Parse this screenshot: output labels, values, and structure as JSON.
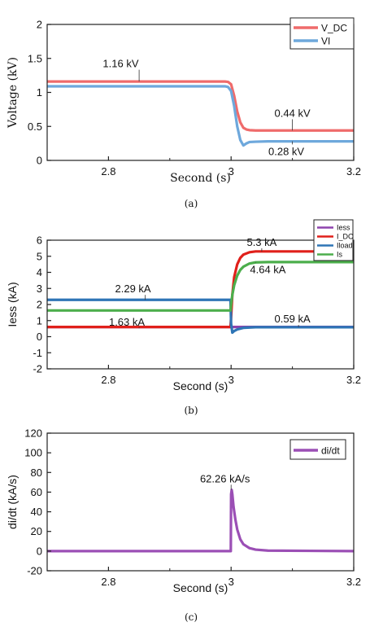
{
  "chart_data": [
    {
      "id": "a",
      "type": "line",
      "caption": "(a)",
      "xlabel": "Second (s)",
      "ylabel": "Voltage (kV)",
      "xlim": [
        2.7,
        3.2
      ],
      "ylim": [
        0,
        2
      ],
      "xticks": [
        2.8,
        3,
        3.2
      ],
      "xtick_labels": [
        "2.8",
        "3",
        "3.2"
      ],
      "yticks": [
        0,
        0.5,
        1,
        1.5,
        2
      ],
      "ytick_labels": [
        "0",
        "0.5",
        "1",
        "1.5",
        "2"
      ],
      "legend_position": "top-right",
      "series": [
        {
          "name": "V_DC",
          "color": "#ef6b6b",
          "x": [
            2.7,
            2.99,
            2.995,
            3.0,
            3.005,
            3.01,
            3.015,
            3.02,
            3.025,
            3.03,
            3.04,
            3.06,
            3.1,
            3.2
          ],
          "y": [
            1.16,
            1.16,
            1.155,
            1.12,
            0.95,
            0.72,
            0.56,
            0.48,
            0.455,
            0.445,
            0.44,
            0.44,
            0.44,
            0.44
          ]
        },
        {
          "name": "VI",
          "color": "#6ea8dc",
          "x": [
            2.7,
            2.99,
            2.995,
            3.0,
            3.005,
            3.01,
            3.015,
            3.02,
            3.025,
            3.03,
            3.04,
            3.06,
            3.1,
            3.2
          ],
          "y": [
            1.09,
            1.09,
            1.08,
            1.02,
            0.8,
            0.5,
            0.3,
            0.22,
            0.25,
            0.27,
            0.275,
            0.28,
            0.28,
            0.28
          ]
        }
      ],
      "annotations": [
        {
          "text": "1.16 kV",
          "x": 2.85,
          "y": 1.16,
          "label_x": 2.82,
          "label_y": 1.37
        },
        {
          "text": "0.44 kV",
          "x": 3.1,
          "y": 0.44,
          "label_x": 3.1,
          "label_y": 0.64
        },
        {
          "text": "0.28 kV",
          "x": 3.1,
          "y": 0.28,
          "label_x": 3.09,
          "label_y": 0.08
        }
      ]
    },
    {
      "id": "b",
      "type": "line",
      "caption": "(b)",
      "xlabel": "Second (s)",
      "ylabel": "Iess (kA)",
      "xlim": [
        2.7,
        3.2
      ],
      "ylim": [
        -2,
        6
      ],
      "xticks": [
        2.8,
        3,
        3.2
      ],
      "xtick_labels": [
        "2.8",
        "3",
        "3.2"
      ],
      "yticks": [
        -2,
        -1,
        0,
        1,
        2,
        3,
        4,
        5,
        6
      ],
      "ytick_labels": [
        "-2",
        "-1",
        "0",
        "1",
        "2",
        "3",
        "4",
        "5",
        "6"
      ],
      "legend_position": "top-right",
      "series": [
        {
          "name": "Iess",
          "color": "#8e44ad",
          "x": [
            2.7,
            3.2
          ],
          "y": [
            0.6,
            0.6
          ]
        },
        {
          "name": "I_DC",
          "color": "#e0201b",
          "x": [
            2.7,
            2.999,
            3.0,
            3.002,
            3.005,
            3.01,
            3.015,
            3.02,
            3.03,
            3.04,
            3.06,
            3.1,
            3.2
          ],
          "y": [
            0.6,
            0.6,
            1.2,
            2.6,
            3.7,
            4.5,
            4.9,
            5.1,
            5.25,
            5.3,
            5.3,
            5.3,
            5.3
          ]
        },
        {
          "name": "Iload",
          "color": "#2e75b6",
          "x": [
            2.7,
            2.999,
            3.0,
            3.002,
            3.005,
            3.01,
            3.02,
            3.04,
            3.06,
            3.2
          ],
          "y": [
            2.29,
            2.29,
            0.8,
            0.25,
            0.35,
            0.45,
            0.55,
            0.59,
            0.59,
            0.59
          ]
        },
        {
          "name": "Is",
          "color": "#4cae4c",
          "x": [
            2.7,
            2.999,
            3.0,
            3.002,
            3.005,
            3.01,
            3.015,
            3.02,
            3.03,
            3.04,
            3.06,
            3.1,
            3.2
          ],
          "y": [
            1.63,
            1.63,
            2.0,
            2.6,
            3.2,
            3.8,
            4.15,
            4.35,
            4.55,
            4.62,
            4.64,
            4.64,
            4.64
          ]
        }
      ],
      "annotations": [
        {
          "text": "5.3 kA",
          "x": 3.05,
          "y": 5.3,
          "label_x": 3.05,
          "label_y": 5.65
        },
        {
          "text": "4.64 kA",
          "x": 3.04,
          "y": 4.64,
          "label_x": 3.06,
          "label_y": 3.95
        },
        {
          "text": "2.29 kA",
          "x": 2.86,
          "y": 2.29,
          "label_x": 2.84,
          "label_y": 2.75
        },
        {
          "text": "1.63 kA",
          "x": 2.85,
          "y": 0.6,
          "label_x": 2.83,
          "label_y": 0.68
        },
        {
          "text": "0.59 kA",
          "x": 3.11,
          "y": 0.59,
          "label_x": 3.1,
          "label_y": 0.88
        }
      ]
    },
    {
      "id": "c",
      "type": "line",
      "caption": "(c)",
      "xlabel": "Second (s)",
      "ylabel": "di/dt (kA/s)",
      "xlim": [
        2.7,
        3.2
      ],
      "ylim": [
        -20,
        120
      ],
      "xticks": [
        2.8,
        3,
        3.2
      ],
      "xtick_labels": [
        "2.8",
        "3",
        "3.2"
      ],
      "yticks": [
        -20,
        0,
        20,
        40,
        60,
        80,
        100,
        120
      ],
      "ytick_labels": [
        "-20",
        "0",
        "20",
        "40",
        "60",
        "80",
        "100",
        "120"
      ],
      "legend_position": "top-right",
      "series": [
        {
          "name": "di/dt",
          "color": "#9b4fb5",
          "x": [
            2.7,
            2.9995,
            3.0,
            3.001,
            3.002,
            3.004,
            3.007,
            3.01,
            3.015,
            3.02,
            3.03,
            3.04,
            3.06,
            3.2
          ],
          "y": [
            0,
            0,
            58,
            62.26,
            58,
            45,
            32,
            22,
            12,
            7,
            3,
            1.5,
            0.5,
            0
          ]
        }
      ],
      "annotations": [
        {
          "text": "62.26 kA/s",
          "x": 3.0,
          "y": 62.26,
          "label_x": 2.99,
          "label_y": 70
        }
      ]
    }
  ]
}
